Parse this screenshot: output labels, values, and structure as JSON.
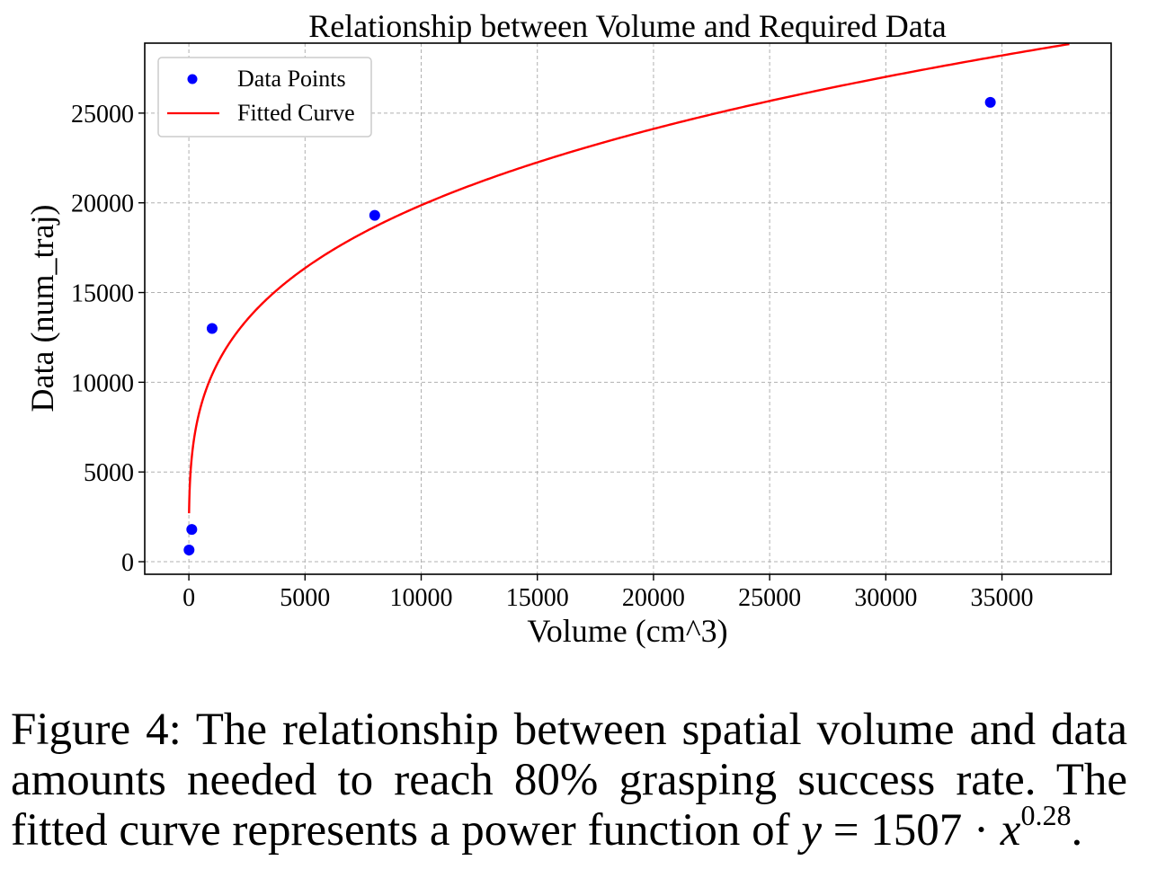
{
  "chart_data": {
    "type": "scatter",
    "title": "Relationship between Volume and Required Data",
    "xlabel": "Volume (cm^3)",
    "ylabel": "Data (num_traj)",
    "xlim": [
      -1900,
      39700
    ],
    "ylim": [
      -700,
      28900
    ],
    "x_ticks": [
      0,
      5000,
      10000,
      15000,
      20000,
      25000,
      30000,
      35000
    ],
    "y_ticks": [
      0,
      5000,
      10000,
      15000,
      20000,
      25000
    ],
    "grid": true,
    "legend_position": "top-left",
    "series": [
      {
        "name": "Data Points",
        "kind": "scatter",
        "color": "#0000ff",
        "x": [
          8,
          125,
          1000,
          8000,
          34500
        ],
        "y": [
          650,
          1800,
          13000,
          19300,
          25600
        ]
      },
      {
        "name": "Fitted Curve",
        "kind": "line",
        "color": "#ff0000",
        "function": "power",
        "coefficient": 1507,
        "exponent": 0.28,
        "x_range": [
          8,
          37900
        ]
      }
    ]
  },
  "caption": {
    "prefix": "Figure 4: The relationship between spatial volume and data amounts needed to reach 80% grasping success rate. The fitted curve represents a power function of ",
    "formula_lhs": "y",
    "formula_mid": " = 1507 · ",
    "formula_var": "x",
    "formula_exp": "0.28",
    "suffix": "."
  }
}
